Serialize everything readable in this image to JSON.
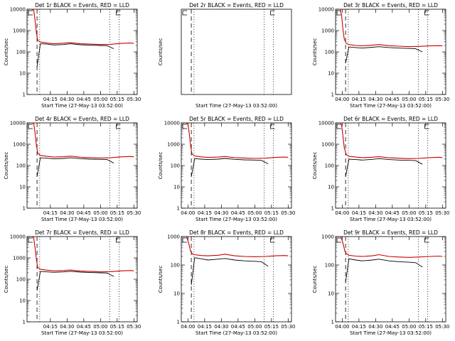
{
  "figure": {
    "colors": {
      "events": "#000000",
      "lld": "#cc0000",
      "axis": "#000000"
    }
  },
  "chart_data": [
    {
      "type": "line",
      "title": "Det 1r BLACK = Events, RED = LLD",
      "xlabel": "Start Time (27-May-13 03:52:00)",
      "ylabel": "Counts/sec",
      "xlim": [
        3.9,
        5.55
      ],
      "ylim": [
        1,
        10000
      ],
      "yscale": "log",
      "x_ticks": [
        4.25,
        4.5,
        4.75,
        5.0,
        5.25,
        5.5
      ],
      "x_tick_labels": [
        "04:15",
        "04:30",
        "04:45",
        "05:00",
        "05:15",
        "05:30"
      ],
      "y_ticks": [
        1,
        10,
        100,
        1000,
        10000
      ],
      "y_tick_labels": [
        "1",
        "10",
        "100",
        "1000",
        "10000"
      ],
      "markers": {
        "dashed": [
          4.05
        ],
        "dotted": [
          4.09,
          5.14,
          5.28
        ]
      },
      "series": [
        {
          "name": "Events",
          "x": [
            4.05,
            4.1,
            4.2,
            4.3,
            4.45,
            4.55,
            4.7,
            4.85,
            5.0,
            5.1,
            5.2
          ],
          "y": [
            20,
            240,
            230,
            210,
            220,
            240,
            215,
            205,
            200,
            195,
            140
          ]
        },
        {
          "name": "LLD",
          "x": [
            3.97,
            4.0,
            4.02,
            4.04,
            4.06,
            4.1,
            4.2,
            4.3,
            4.45,
            4.55,
            4.7,
            4.85,
            5.0,
            5.15,
            5.3,
            5.45,
            5.5
          ],
          "y": [
            10000,
            9000,
            3000,
            800,
            350,
            290,
            260,
            240,
            255,
            270,
            240,
            230,
            220,
            225,
            250,
            260,
            250
          ]
        }
      ]
    },
    {
      "type": "line",
      "title": "Det 2r BLACK = Events, RED = LLD",
      "xlabel": "Start Time (27-May-13 03:52:00)",
      "ylabel": "Counts/sec",
      "xlim": [
        3.9,
        5.55
      ],
      "ylim": [
        1,
        10000
      ],
      "yscale": "log",
      "x_ticks": [],
      "x_tick_labels": [],
      "y_ticks": [],
      "y_tick_labels": [],
      "markers": {
        "dashed": [
          4.05
        ],
        "dotted": [
          4.09,
          5.14,
          5.28
        ]
      },
      "series": []
    },
    {
      "type": "line",
      "title": "Det 3r BLACK = Events, RED = LLD",
      "xlabel": "Start Time (27-May-13 03:52:00)",
      "ylabel": "Counts/sec",
      "xlim": [
        3.9,
        5.55
      ],
      "ylim": [
        1,
        10000
      ],
      "yscale": "log",
      "x_ticks": [
        4.0,
        4.25,
        4.5,
        4.75,
        5.0,
        5.25,
        5.5
      ],
      "x_tick_labels": [
        "04:00",
        "04:15",
        "04:30",
        "04:45",
        "05:00",
        "05:15",
        "05:30"
      ],
      "y_ticks": [
        1,
        10,
        100,
        1000,
        10000
      ],
      "y_tick_labels": [
        "1",
        "10",
        "100",
        "1000",
        "10000"
      ],
      "markers": {
        "dashed": [
          4.05
        ],
        "dotted": [
          4.09,
          5.14,
          5.28
        ]
      },
      "series": [
        {
          "name": "Events",
          "x": [
            4.05,
            4.1,
            4.2,
            4.3,
            4.45,
            4.55,
            4.7,
            4.85,
            5.0,
            5.1,
            5.2
          ],
          "y": [
            30,
            170,
            160,
            150,
            165,
            175,
            160,
            150,
            145,
            140,
            100
          ]
        },
        {
          "name": "LLD",
          "x": [
            3.97,
            3.99,
            4.01,
            4.03,
            4.06,
            4.1,
            4.2,
            4.3,
            4.45,
            4.55,
            4.7,
            4.85,
            5.0,
            5.15,
            5.3,
            5.45,
            5.5
          ],
          "y": [
            10000,
            5000,
            1200,
            400,
            250,
            220,
            200,
            190,
            205,
            220,
            195,
            185,
            175,
            180,
            190,
            195,
            190
          ]
        }
      ]
    },
    {
      "type": "line",
      "title": "Det 4r BLACK = Events, RED = LLD",
      "xlabel": "Start Time (27-May-13 03:52:00)",
      "ylabel": "Counts/sec",
      "xlim": [
        3.9,
        5.55
      ],
      "ylim": [
        1,
        10000
      ],
      "yscale": "log",
      "x_ticks": [
        4.25,
        4.5,
        4.75,
        5.0,
        5.25,
        5.5
      ],
      "x_tick_labels": [
        "04:15",
        "04:30",
        "04:45",
        "05:00",
        "05:15",
        "05:30"
      ],
      "y_ticks": [
        1,
        10,
        100,
        1000,
        10000
      ],
      "y_tick_labels": [
        "1",
        "10",
        "100",
        "1000",
        "10000"
      ],
      "markers": {
        "dashed": [
          4.05
        ],
        "dotted": [
          4.09,
          5.14,
          5.28
        ]
      },
      "series": [
        {
          "name": "Events",
          "x": [
            4.05,
            4.1,
            4.2,
            4.3,
            4.45,
            4.55,
            4.7,
            4.85,
            5.0,
            5.1,
            5.2
          ],
          "y": [
            30,
            230,
            220,
            205,
            215,
            230,
            210,
            200,
            195,
            190,
            130
          ]
        },
        {
          "name": "LLD",
          "x": [
            3.97,
            4.0,
            4.02,
            4.04,
            4.06,
            4.1,
            4.2,
            4.3,
            4.45,
            4.55,
            4.7,
            4.85,
            5.0,
            5.15,
            5.3,
            5.45,
            5.5
          ],
          "y": [
            10000,
            9500,
            3500,
            900,
            380,
            300,
            270,
            250,
            260,
            275,
            245,
            235,
            225,
            230,
            255,
            265,
            255
          ]
        }
      ]
    },
    {
      "type": "line",
      "title": "Det 5r BLACK = Events, RED = LLD",
      "xlabel": "Start Time (27-May-13 03:52:00)",
      "ylabel": "Counts/sec",
      "xlim": [
        3.9,
        5.55
      ],
      "ylim": [
        1,
        10000
      ],
      "yscale": "log",
      "x_ticks": [
        4.0,
        4.25,
        4.5,
        4.75,
        5.0,
        5.25,
        5.5
      ],
      "x_tick_labels": [
        "04:00",
        "04:15",
        "04:30",
        "04:45",
        "05:00",
        "05:15",
        "05:30"
      ],
      "y_ticks": [
        1,
        10,
        100,
        1000,
        10000
      ],
      "y_tick_labels": [
        "1",
        "10",
        "100",
        "1000",
        "10000"
      ],
      "markers": {
        "dashed": [
          4.05
        ],
        "dotted": [
          4.09,
          5.14,
          5.28
        ]
      },
      "series": [
        {
          "name": "Events",
          "x": [
            4.05,
            4.1,
            4.2,
            4.3,
            4.45,
            4.55,
            4.7,
            4.85,
            5.0,
            5.1,
            5.2
          ],
          "y": [
            30,
            210,
            200,
            190,
            200,
            215,
            195,
            185,
            180,
            175,
            120
          ]
        },
        {
          "name": "LLD",
          "x": [
            3.97,
            4.0,
            4.02,
            4.04,
            4.06,
            4.1,
            4.2,
            4.3,
            4.45,
            4.55,
            4.7,
            4.85,
            5.0,
            5.15,
            5.3,
            5.45,
            5.5
          ],
          "y": [
            10000,
            9000,
            3000,
            800,
            350,
            280,
            255,
            240,
            250,
            265,
            235,
            225,
            215,
            220,
            240,
            250,
            240
          ]
        }
      ]
    },
    {
      "type": "line",
      "title": "Det 6r BLACK = Events, RED = LLD",
      "xlabel": "Start Time (27-May-13 03:52:00)",
      "ylabel": "Counts/sec",
      "xlim": [
        3.9,
        5.55
      ],
      "ylim": [
        1,
        10000
      ],
      "yscale": "log",
      "x_ticks": [
        4.0,
        4.25,
        4.5,
        4.75,
        5.0,
        5.25,
        5.5
      ],
      "x_tick_labels": [
        "04:00",
        "04:15",
        "04:30",
        "04:45",
        "05:00",
        "05:15",
        "05:30"
      ],
      "y_ticks": [
        1,
        10,
        100,
        1000,
        10000
      ],
      "y_tick_labels": [
        "1",
        "10",
        "100",
        "1000",
        "10000"
      ],
      "markers": {
        "dashed": [
          4.05
        ],
        "dotted": [
          4.09,
          5.14,
          5.28
        ]
      },
      "series": [
        {
          "name": "Events",
          "x": [
            4.05,
            4.1,
            4.2,
            4.3,
            4.45,
            4.55,
            4.7,
            4.85,
            5.0,
            5.1,
            5.2
          ],
          "y": [
            30,
            200,
            190,
            180,
            195,
            210,
            190,
            180,
            175,
            170,
            115
          ]
        },
        {
          "name": "LLD",
          "x": [
            3.97,
            3.99,
            4.01,
            4.03,
            4.06,
            4.1,
            4.2,
            4.3,
            4.45,
            4.55,
            4.7,
            4.85,
            5.0,
            5.15,
            5.3,
            5.45,
            5.5
          ],
          "y": [
            10000,
            8000,
            2500,
            700,
            330,
            270,
            250,
            235,
            245,
            260,
            230,
            220,
            210,
            215,
            235,
            245,
            235
          ]
        }
      ]
    },
    {
      "type": "line",
      "title": "Det 7r BLACK = Events, RED = LLD",
      "xlabel": "Start Time (27-May-13 03:52:00)",
      "ylabel": "Counts/sec",
      "xlim": [
        3.9,
        5.55
      ],
      "ylim": [
        1,
        10000
      ],
      "yscale": "log",
      "x_ticks": [
        4.25,
        4.5,
        4.75,
        5.0,
        5.25,
        5.5
      ],
      "x_tick_labels": [
        "04:15",
        "04:30",
        "04:45",
        "05:00",
        "05:15",
        "05:30"
      ],
      "y_ticks": [
        1,
        10,
        100,
        1000,
        10000
      ],
      "y_tick_labels": [
        "1",
        "10",
        "100",
        "1000",
        "10000"
      ],
      "markers": {
        "dashed": [
          4.05
        ],
        "dotted": [
          4.09,
          5.14,
          5.28
        ]
      },
      "series": [
        {
          "name": "Events",
          "x": [
            4.05,
            4.1,
            4.2,
            4.3,
            4.45,
            4.55,
            4.7,
            4.85,
            5.0,
            5.1,
            5.2
          ],
          "y": [
            30,
            230,
            220,
            210,
            220,
            235,
            215,
            205,
            200,
            195,
            135
          ]
        },
        {
          "name": "LLD",
          "x": [
            3.97,
            4.0,
            4.02,
            4.04,
            4.06,
            4.1,
            4.2,
            4.3,
            4.45,
            4.55,
            4.7,
            4.85,
            5.0,
            5.15,
            5.3,
            5.45,
            5.5
          ],
          "y": [
            10000,
            9000,
            3000,
            850,
            360,
            290,
            265,
            245,
            255,
            270,
            240,
            230,
            220,
            225,
            245,
            255,
            245
          ]
        }
      ]
    },
    {
      "type": "line",
      "title": "Det 8r BLACK = Events, RED = LLD",
      "xlabel": "Start Time (27-May-13 03:52:00)",
      "ylabel": "Counts/sec",
      "xlim": [
        3.9,
        5.55
      ],
      "ylim": [
        1,
        1000
      ],
      "yscale": "log",
      "x_ticks": [
        4.0,
        4.25,
        4.5,
        4.75,
        5.0,
        5.25,
        5.5
      ],
      "x_tick_labels": [
        "04:00",
        "04:15",
        "04:30",
        "04:45",
        "05:00",
        "05:15",
        "05:30"
      ],
      "y_ticks": [
        1,
        10,
        100,
        1000
      ],
      "y_tick_labels": [
        "1",
        "10",
        "100",
        "1000"
      ],
      "markers": {
        "dashed": [
          4.05
        ],
        "dotted": [
          4.09,
          5.14,
          5.28
        ]
      },
      "series": [
        {
          "name": "Events",
          "x": [
            4.05,
            4.1,
            4.2,
            4.3,
            4.45,
            4.55,
            4.7,
            4.85,
            5.0,
            5.1,
            5.2
          ],
          "y": [
            20,
            180,
            165,
            150,
            160,
            170,
            150,
            140,
            135,
            130,
            90
          ]
        },
        {
          "name": "LLD",
          "x": [
            3.98,
            4.01,
            4.04,
            4.07,
            4.1,
            4.2,
            4.3,
            4.45,
            4.55,
            4.7,
            4.85,
            5.0,
            5.15,
            5.3,
            5.45,
            5.5
          ],
          "y": [
            1000,
            600,
            300,
            240,
            230,
            215,
            210,
            220,
            240,
            210,
            200,
            195,
            200,
            210,
            215,
            210
          ]
        }
      ]
    },
    {
      "type": "line",
      "title": "Det 9r BLACK = Events, RED = LLD",
      "xlabel": "Start Time (27-May-13 03:52:00)",
      "ylabel": "Counts/sec",
      "xlim": [
        3.9,
        5.55
      ],
      "ylim": [
        1,
        1000
      ],
      "yscale": "log",
      "x_ticks": [
        4.0,
        4.25,
        4.5,
        4.75,
        5.0,
        5.25,
        5.5
      ],
      "x_tick_labels": [
        "04:00",
        "04:15",
        "04:30",
        "04:45",
        "05:00",
        "05:15",
        "05:30"
      ],
      "y_ticks": [
        1,
        10,
        100,
        1000
      ],
      "y_tick_labels": [
        "1",
        "10",
        "100",
        "1000"
      ],
      "markers": {
        "dashed": [
          4.05
        ],
        "dotted": [
          4.09,
          5.14,
          5.28
        ]
      },
      "series": [
        {
          "name": "Events",
          "x": [
            4.05,
            4.1,
            4.2,
            4.3,
            4.45,
            4.55,
            4.7,
            4.85,
            5.0,
            5.1,
            5.2
          ],
          "y": [
            25,
            165,
            150,
            140,
            150,
            160,
            140,
            130,
            125,
            120,
            85
          ]
        },
        {
          "name": "LLD",
          "x": [
            3.98,
            4.01,
            4.04,
            4.07,
            4.1,
            4.2,
            4.3,
            4.45,
            4.55,
            4.7,
            4.85,
            5.0,
            5.15,
            5.3,
            5.45,
            5.5
          ],
          "y": [
            1000,
            600,
            300,
            240,
            220,
            205,
            200,
            210,
            230,
            200,
            190,
            185,
            190,
            200,
            205,
            200
          ]
        }
      ]
    }
  ]
}
